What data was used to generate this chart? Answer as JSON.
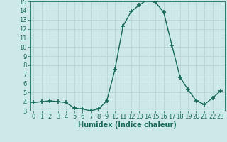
{
  "x": [
    0,
    1,
    2,
    3,
    4,
    5,
    6,
    7,
    8,
    9,
    10,
    11,
    12,
    13,
    14,
    15,
    16,
    17,
    18,
    19,
    20,
    21,
    22,
    23
  ],
  "y": [
    3.9,
    4.0,
    4.1,
    4.0,
    3.9,
    3.3,
    3.2,
    3.0,
    3.2,
    4.1,
    7.5,
    12.3,
    13.9,
    14.6,
    15.2,
    14.9,
    13.8,
    10.2,
    6.7,
    5.3,
    4.1,
    3.7,
    4.4,
    5.2
  ],
  "line_color": "#1a6b5a",
  "marker": "+",
  "markersize": 4,
  "linewidth": 1.0,
  "background_color": "#cde8e8",
  "grid_color": "#b8d4d4",
  "xlabel": "Humidex (Indice chaleur)",
  "xlabel_fontsize": 7,
  "tick_fontsize": 6,
  "ylim": [
    3,
    15
  ],
  "xlim": [
    -0.5,
    23.5
  ],
  "yticks": [
    3,
    4,
    5,
    6,
    7,
    8,
    9,
    10,
    11,
    12,
    13,
    14,
    15
  ],
  "xticks": [
    0,
    1,
    2,
    3,
    4,
    5,
    6,
    7,
    8,
    9,
    10,
    11,
    12,
    13,
    14,
    15,
    16,
    17,
    18,
    19,
    20,
    21,
    22,
    23
  ]
}
